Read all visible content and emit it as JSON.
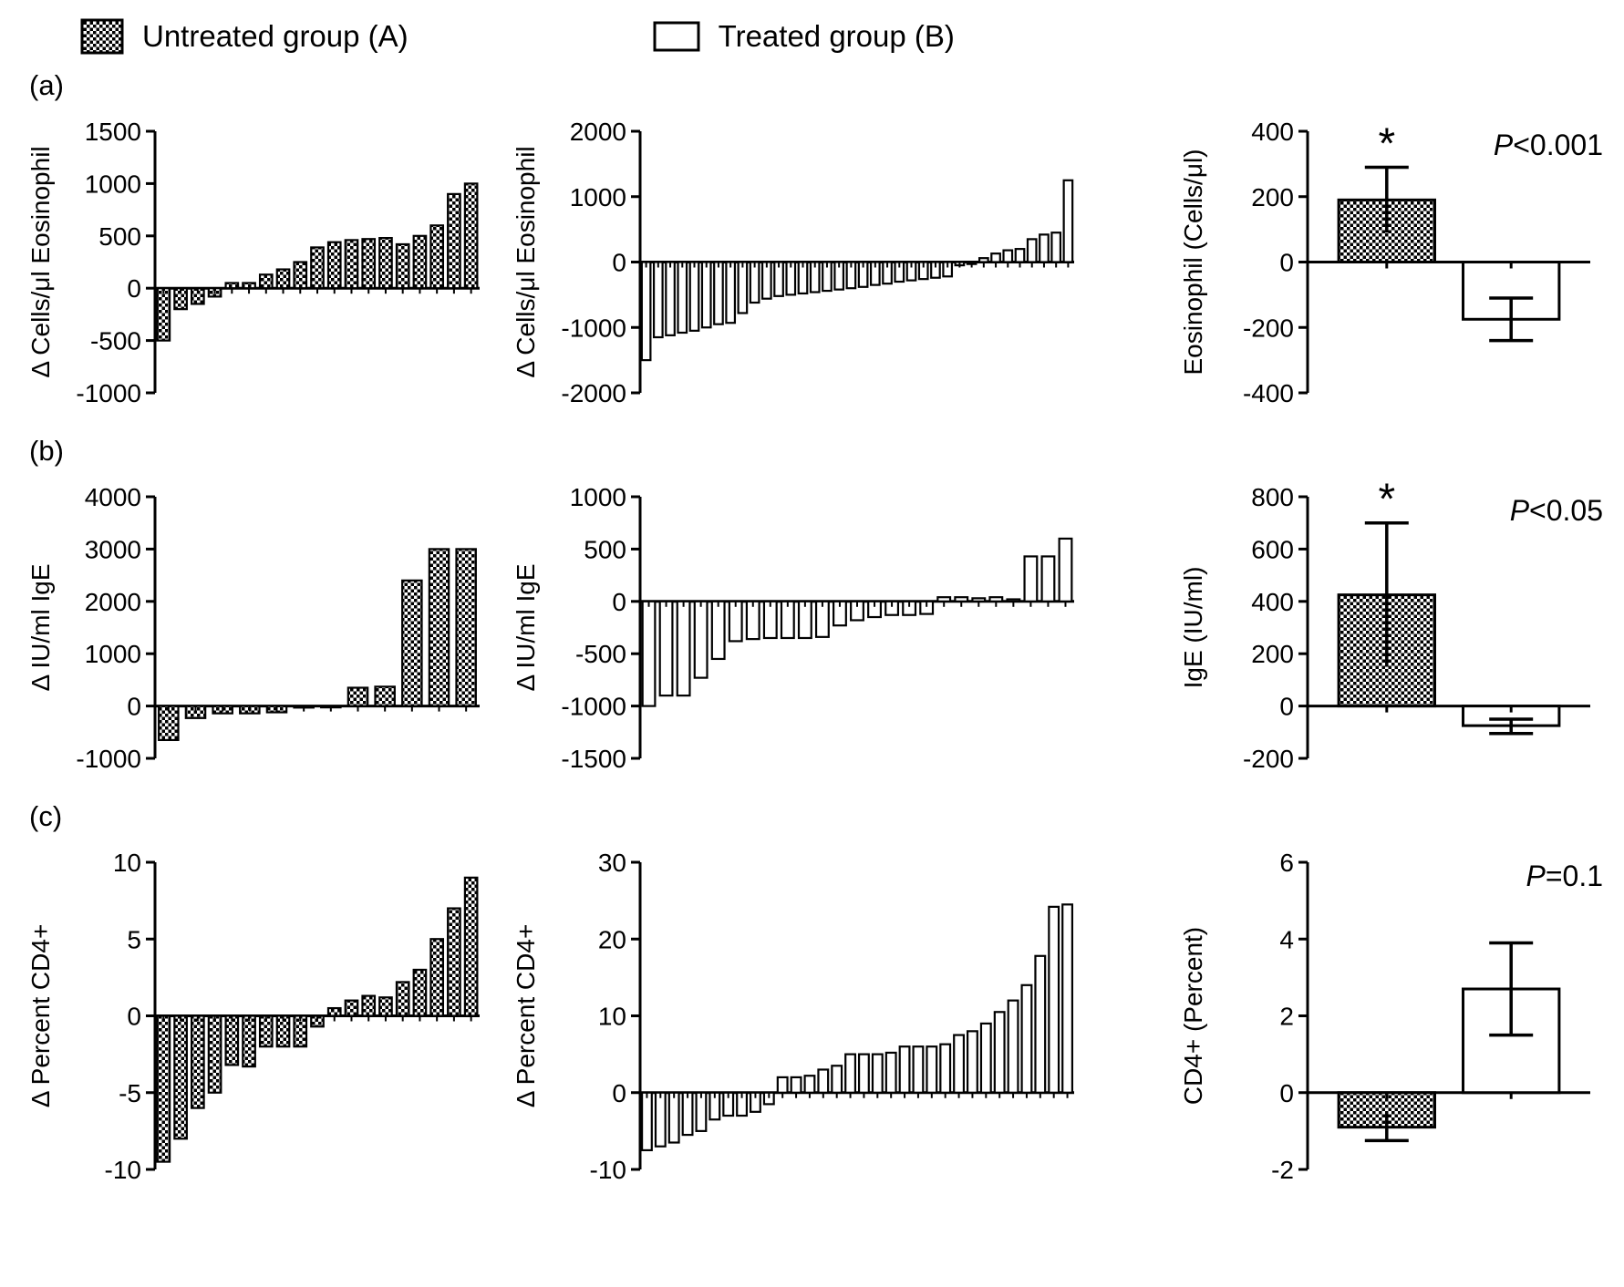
{
  "figure": {
    "background": "#ffffff",
    "ink": "#000000"
  },
  "legend": {
    "items": [
      {
        "key": "untreated",
        "label": "Untreated group (A)",
        "swatch": "checkerboard"
      },
      {
        "key": "treated",
        "label": "Treated group (B)",
        "swatch": "open-white"
      }
    ]
  },
  "panel_labels": [
    "(a)",
    "(b)",
    "(c)"
  ],
  "chart_data": [
    {
      "id": "a-untreated-waterfall",
      "type": "bar",
      "group": "Untreated group (A)",
      "ylabel": "Δ Cells/μl Eosinophil",
      "xlabel": "",
      "grid": false,
      "ylim": [
        -1000,
        1500
      ],
      "yticks": [
        -1000,
        -500,
        0,
        500,
        1000,
        1500
      ],
      "pattern": "checkerboard",
      "values": [
        -500,
        -200,
        -150,
        -80,
        50,
        50,
        130,
        180,
        250,
        390,
        440,
        460,
        470,
        480,
        420,
        500,
        600,
        900,
        1000
      ]
    },
    {
      "id": "a-treated-waterfall",
      "type": "bar",
      "group": "Treated group (B)",
      "ylabel": "Δ Cells/μl Eosinophil",
      "xlabel": "",
      "grid": false,
      "ylim": [
        -2000,
        2000
      ],
      "yticks": [
        -2000,
        -1000,
        0,
        1000,
        2000
      ],
      "pattern": "open",
      "values": [
        -1500,
        -1150,
        -1120,
        -1080,
        -1050,
        -1000,
        -950,
        -930,
        -780,
        -620,
        -560,
        -520,
        -500,
        -480,
        -460,
        -440,
        -420,
        -400,
        -380,
        -350,
        -330,
        -300,
        -280,
        -260,
        -240,
        -220,
        -50,
        -30,
        60,
        130,
        180,
        200,
        350,
        420,
        450,
        1250
      ]
    },
    {
      "id": "a-summary",
      "type": "bar",
      "ylabel": "Eosinophil (Cells/μl)",
      "grid": false,
      "ylim": [
        -400,
        400
      ],
      "yticks": [
        -400,
        -200,
        0,
        200,
        400
      ],
      "p_label": "P<0.001",
      "bars": [
        {
          "group": "Untreated group (A)",
          "pattern": "checkerboard",
          "value": 190,
          "err_low": 90,
          "err_high": 290,
          "caps": "outer",
          "significance": "*"
        },
        {
          "group": "Treated group (B)",
          "pattern": "open",
          "value": -175,
          "err_low": -240,
          "err_high": -110,
          "caps": "both",
          "significance": ""
        }
      ]
    },
    {
      "id": "b-untreated-waterfall",
      "type": "bar",
      "group": "Untreated group (A)",
      "ylabel": "Δ IU/ml IgE",
      "xlabel": "",
      "grid": false,
      "ylim": [
        -1000,
        4000
      ],
      "yticks": [
        -1000,
        0,
        1000,
        2000,
        3000,
        4000
      ],
      "pattern": "checkerboard",
      "values": [
        -650,
        -230,
        -140,
        -140,
        -120,
        -30,
        -10,
        350,
        370,
        2400,
        3000,
        3000
      ]
    },
    {
      "id": "b-treated-waterfall",
      "type": "bar",
      "group": "Treated group (B)",
      "ylabel": "Δ IU/ml IgE",
      "xlabel": "",
      "grid": false,
      "ylim": [
        -1500,
        1000
      ],
      "yticks": [
        -1500,
        -1000,
        -500,
        0,
        500,
        1000
      ],
      "pattern": "open",
      "values": [
        -1000,
        -900,
        -900,
        -730,
        -550,
        -380,
        -360,
        -350,
        -350,
        -350,
        -340,
        -230,
        -180,
        -150,
        -130,
        -130,
        -120,
        40,
        40,
        30,
        40,
        20,
        430,
        430,
        600
      ]
    },
    {
      "id": "b-summary",
      "type": "bar",
      "ylabel": "IgE (IU/ml)",
      "grid": false,
      "ylim": [
        -200,
        800
      ],
      "yticks": [
        -200,
        0,
        200,
        400,
        600,
        800
      ],
      "p_label": "P<0.05",
      "bars": [
        {
          "group": "Untreated group (A)",
          "pattern": "checkerboard",
          "value": 425,
          "err_low": 150,
          "err_high": 700,
          "caps": "outer",
          "significance": "*"
        },
        {
          "group": "Treated group (B)",
          "pattern": "open",
          "value": -75,
          "err_low": -105,
          "err_high": -50,
          "caps": "both",
          "significance": ""
        }
      ]
    },
    {
      "id": "c-untreated-waterfall",
      "type": "bar",
      "group": "Untreated group (A)",
      "ylabel": "Δ Percent CD4+",
      "xlabel": "",
      "grid": false,
      "ylim": [
        -10,
        10
      ],
      "yticks": [
        -10,
        -5,
        0,
        5,
        10
      ],
      "pattern": "checkerboard",
      "values": [
        -9.5,
        -8,
        -6,
        -5,
        -3.2,
        -3.3,
        -2,
        -2,
        -2,
        -0.7,
        0.5,
        1,
        1.3,
        1.2,
        2.2,
        3,
        5,
        7,
        9
      ]
    },
    {
      "id": "c-treated-waterfall",
      "type": "bar",
      "group": "Treated group (B)",
      "ylabel": "Δ Percent CD4+",
      "xlabel": "",
      "grid": false,
      "ylim": [
        -10,
        30
      ],
      "yticks": [
        -10,
        0,
        10,
        20,
        30
      ],
      "pattern": "open",
      "values": [
        -7.5,
        -7,
        -6.5,
        -5.5,
        -5,
        -3.5,
        -3,
        -3,
        -2.5,
        -1.5,
        2,
        2,
        2.2,
        3,
        3.5,
        5,
        5,
        5,
        5.2,
        6,
        6,
        6,
        6.3,
        7.5,
        8,
        9,
        10.5,
        12,
        14,
        17.8,
        24.2,
        24.5
      ]
    },
    {
      "id": "c-summary",
      "type": "bar",
      "ylabel": "CD4+ (Percent)",
      "grid": false,
      "ylim": [
        -2,
        6
      ],
      "yticks": [
        -2,
        0,
        2,
        4,
        6
      ],
      "p_label": "P=0.1",
      "bars": [
        {
          "group": "Untreated group (A)",
          "pattern": "checkerboard",
          "value": -0.9,
          "err_low": -1.25,
          "err_high": -0.55,
          "caps": "outer",
          "significance": ""
        },
        {
          "group": "Treated group (B)",
          "pattern": "open",
          "value": 2.7,
          "err_low": 1.5,
          "err_high": 3.9,
          "caps": "both",
          "significance": ""
        }
      ]
    }
  ]
}
